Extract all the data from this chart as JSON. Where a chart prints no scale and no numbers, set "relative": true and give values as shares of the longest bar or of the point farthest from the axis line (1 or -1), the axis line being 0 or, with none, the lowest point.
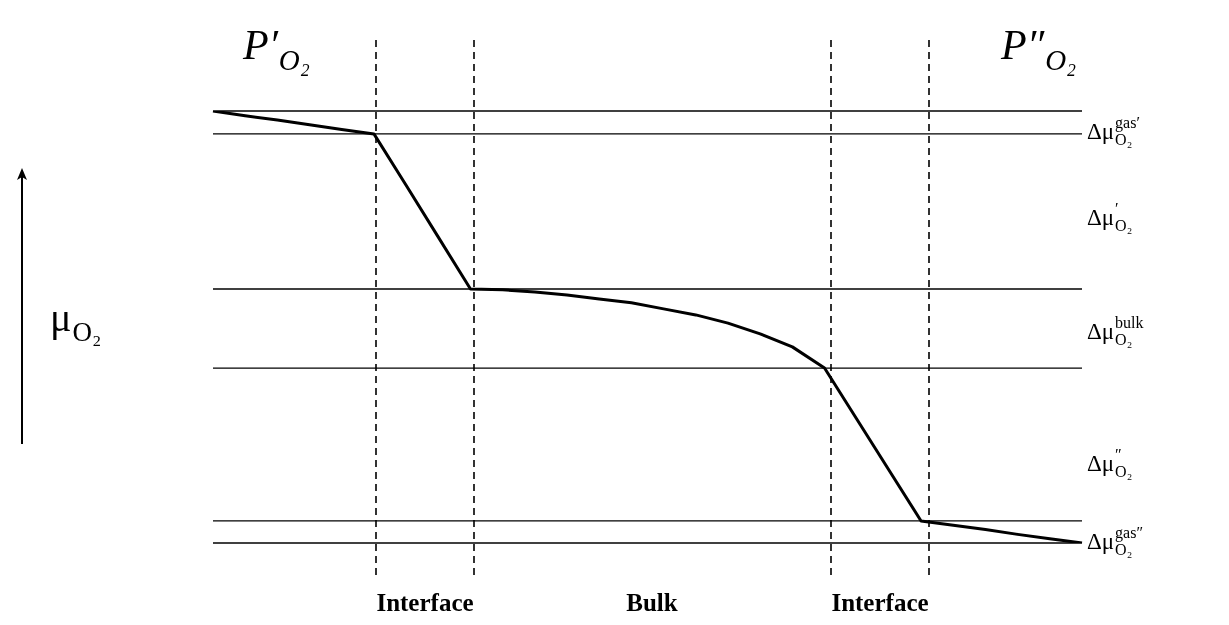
{
  "chart_data": {
    "type": "line",
    "relative": true,
    "ylabel": "μ$_{O₂}$",
    "annotations": [
      "P′$_{O₂}$",
      "P″$_{O₂}$",
      "Interface",
      "Bulk",
      "Interface",
      "Δμ$_{O₂}$$^{gas′}$",
      "Δμ$_{O₂}$$^{′}$",
      "Δμ$_{O₂}$$^{bulk}$",
      "Δμ$_{O₂}$$^{″}$",
      "Δμ$_{O₂}$$^{gas″}$"
    ],
    "categories": [
      null,
      null,
      null,
      null,
      null,
      null,
      null,
      null,
      null,
      null,
      null,
      null,
      null,
      null,
      null,
      null,
      null,
      null,
      null,
      null,
      null,
      null,
      null,
      null,
      null,
      null,
      null,
      null
    ],
    "series": [
      {
        "color": "#000000",
        "values": [
          1,
          0.989,
          0.979,
          0.968,
          0.957,
          0.947,
          0.828,
          0.708,
          0.588,
          0.586,
          0.581,
          0.574,
          0.565,
          0.556,
          0.542,
          0.528,
          0.509,
          0.484,
          0.454,
          0.405,
          0.287,
          0.169,
          0.051,
          0.041,
          0.031,
          0.02,
          0.01,
          0
        ]
      }
    ],
    "ref_lines": [
      {
        "axis": "y",
        "value": 1
      },
      {
        "axis": "y",
        "value": 0.947
      },
      {
        "axis": "y",
        "value": 0.588
      },
      {
        "axis": "y",
        "value": 0.405
      },
      {
        "axis": "y",
        "value": 0.051
      },
      {
        "axis": "y",
        "value": 0
      }
    ]
  }
}
